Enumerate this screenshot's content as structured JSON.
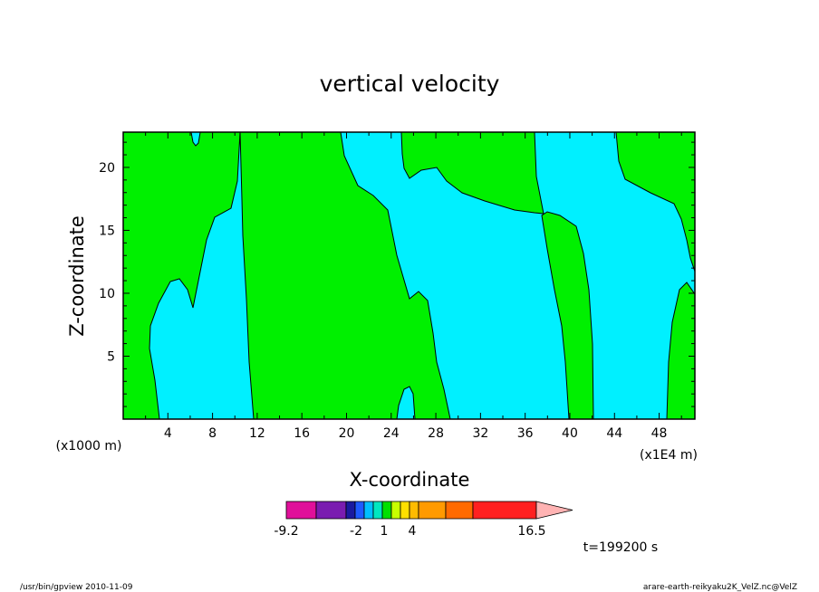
{
  "chart_data": {
    "type": "contour",
    "title": "vertical velocity",
    "xlabel": "X-coordinate",
    "ylabel": "Z-coordinate",
    "x_unit_left": "(x1000 m)",
    "x_unit_right": "(x1E4 m)",
    "x_ticks": [
      4,
      8,
      12,
      16,
      20,
      24,
      28,
      32,
      36,
      40,
      44,
      48
    ],
    "y_ticks": [
      5,
      10,
      15,
      20
    ],
    "xlim": [
      0,
      51.2
    ],
    "ylim": [
      0,
      22.8
    ],
    "colorbar": {
      "labels": [
        "-9.2",
        "-2",
        "1",
        "4",
        "16.5"
      ],
      "colors": [
        "#e0109a",
        "#7a1cb0",
        "#1a1aa0",
        "#1e5aff",
        "#00bfff",
        "#00e7c0",
        "#00e000",
        "#c8ff00",
        "#ffe000",
        "#ffbb00",
        "#ff9a00",
        "#ff6a00",
        "#ff2020",
        "#ff7f7f",
        "#ffb3b3"
      ]
    },
    "time_label": "t=199200 s",
    "fill_colors": {
      "positive": "#00f000",
      "negative": "#00f0ff"
    }
  },
  "footer": {
    "left": "/usr/bin/gpview   2010-11-09",
    "right": "arare-earth-reikyaku2K_VelZ.nc@VelZ"
  }
}
